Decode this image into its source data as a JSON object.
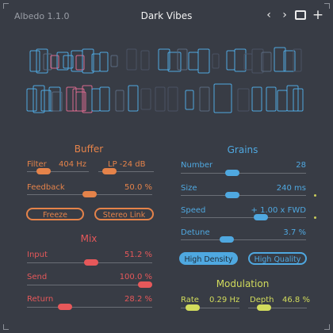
{
  "header": {
    "app_name": "Albedo 1.1.0",
    "preset_name": "Dark Vibes",
    "icons": [
      "chevron-left-icon",
      "chevron-right-icon",
      "window-icon",
      "plus-icon"
    ]
  },
  "colors": {
    "background": "#383c45",
    "buffer_accent": "#e5834a",
    "mix_accent": "#e6585a",
    "grains_accent": "#4fa8e0",
    "modulation_accent": "#d2dc5c"
  },
  "buffer": {
    "title": "Buffer",
    "filter_label": "Filter",
    "filter_value": "404 Hz",
    "filter_level": 0.2,
    "lp_label": "LP -24 dB",
    "lp_level": 0.1,
    "feedback_label": "Feedback",
    "feedback_value": "50.0 %",
    "feedback_level": 0.5,
    "freeze_label": "Freeze",
    "stereo_link_label": "Stereo Link"
  },
  "mix": {
    "title": "Mix",
    "input_label": "Input",
    "input_value": "51.2 %",
    "input_level": 0.512,
    "send_label": "Send",
    "send_value": "100.0 %",
    "send_level": 1.0,
    "return_label": "Return",
    "return_value": "28.2 %",
    "return_level": 0.282
  },
  "grains": {
    "title": "Grains",
    "number_label": "Number",
    "number_value": "28",
    "number_level": 0.4,
    "size_label": "Size",
    "size_value": "240 ms",
    "size_level": 0.4,
    "speed_label": "Speed",
    "speed_value": "+ 1.00 x FWD",
    "speed_level": 0.66,
    "detune_label": "Detune",
    "detune_value": "3.7 %",
    "detune_level": 0.35,
    "high_density_label": "High Density",
    "high_quality_label": "High Quality"
  },
  "modulation": {
    "title": "Modulation",
    "rate_label": "Rate",
    "rate_value": "0.29 Hz",
    "rate_level": 0.1,
    "depth_label": "Depth",
    "depth_value": "46.8 %",
    "depth_level": 0.2
  }
}
